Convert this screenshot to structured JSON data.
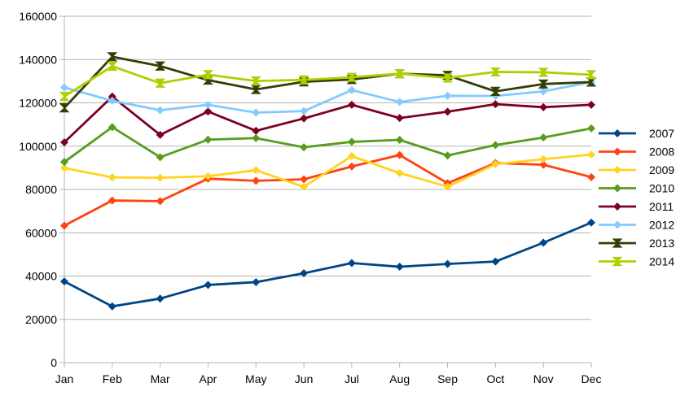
{
  "chart_data": {
    "type": "line",
    "title": "",
    "xlabel": "",
    "ylabel": "",
    "categories": [
      "Jan",
      "Feb",
      "Mar",
      "Apr",
      "May",
      "Jun",
      "Jul",
      "Aug",
      "Sep",
      "Oct",
      "Nov",
      "Dec"
    ],
    "ylim": [
      0,
      160000
    ],
    "yticks": [
      0,
      20000,
      40000,
      60000,
      80000,
      100000,
      120000,
      140000,
      160000
    ],
    "grid": "horizontal",
    "legend_position": "right",
    "series": [
      {
        "name": "2007",
        "color": "#004586",
        "marker": "diamond",
        "values": [
          37500,
          26000,
          29600,
          35900,
          37200,
          41300,
          46000,
          44300,
          45600,
          46700,
          55400,
          64700
        ]
      },
      {
        "name": "2008",
        "color": "#ff420e",
        "marker": "diamond",
        "values": [
          63300,
          74900,
          74600,
          85000,
          84000,
          84700,
          90600,
          95900,
          82900,
          92200,
          91400,
          85700
        ]
      },
      {
        "name": "2009",
        "color": "#ffd320",
        "marker": "diamond",
        "values": [
          89900,
          85600,
          85400,
          86100,
          88900,
          81200,
          95400,
          87600,
          81300,
          91700,
          94000,
          96100
        ]
      },
      {
        "name": "2010",
        "color": "#579d1c",
        "marker": "diamond",
        "values": [
          92700,
          108800,
          94900,
          103000,
          103700,
          99500,
          102000,
          102900,
          95700,
          100500,
          104000,
          108200
        ]
      },
      {
        "name": "2011",
        "color": "#7e0021",
        "marker": "diamond",
        "values": [
          101800,
          122900,
          105200,
          116000,
          107100,
          112800,
          119100,
          113000,
          115900,
          119400,
          118000,
          119100
        ]
      },
      {
        "name": "2012",
        "color": "#83caff",
        "marker": "diamond",
        "values": [
          127100,
          121000,
          116600,
          119100,
          115500,
          116200,
          125900,
          120400,
          123300,
          123200,
          125300,
          129600
        ]
      },
      {
        "name": "2013",
        "color": "#314004",
        "marker": "bowtie",
        "values": [
          117700,
          141300,
          137000,
          130500,
          126200,
          129700,
          130800,
          133500,
          132700,
          125300,
          128700,
          129600
        ]
      },
      {
        "name": "2014",
        "color": "#aecf00",
        "marker": "hourglass",
        "values": [
          123000,
          136900,
          129100,
          133000,
          130100,
          130600,
          131800,
          133500,
          131500,
          134300,
          134100,
          133000
        ]
      }
    ]
  }
}
